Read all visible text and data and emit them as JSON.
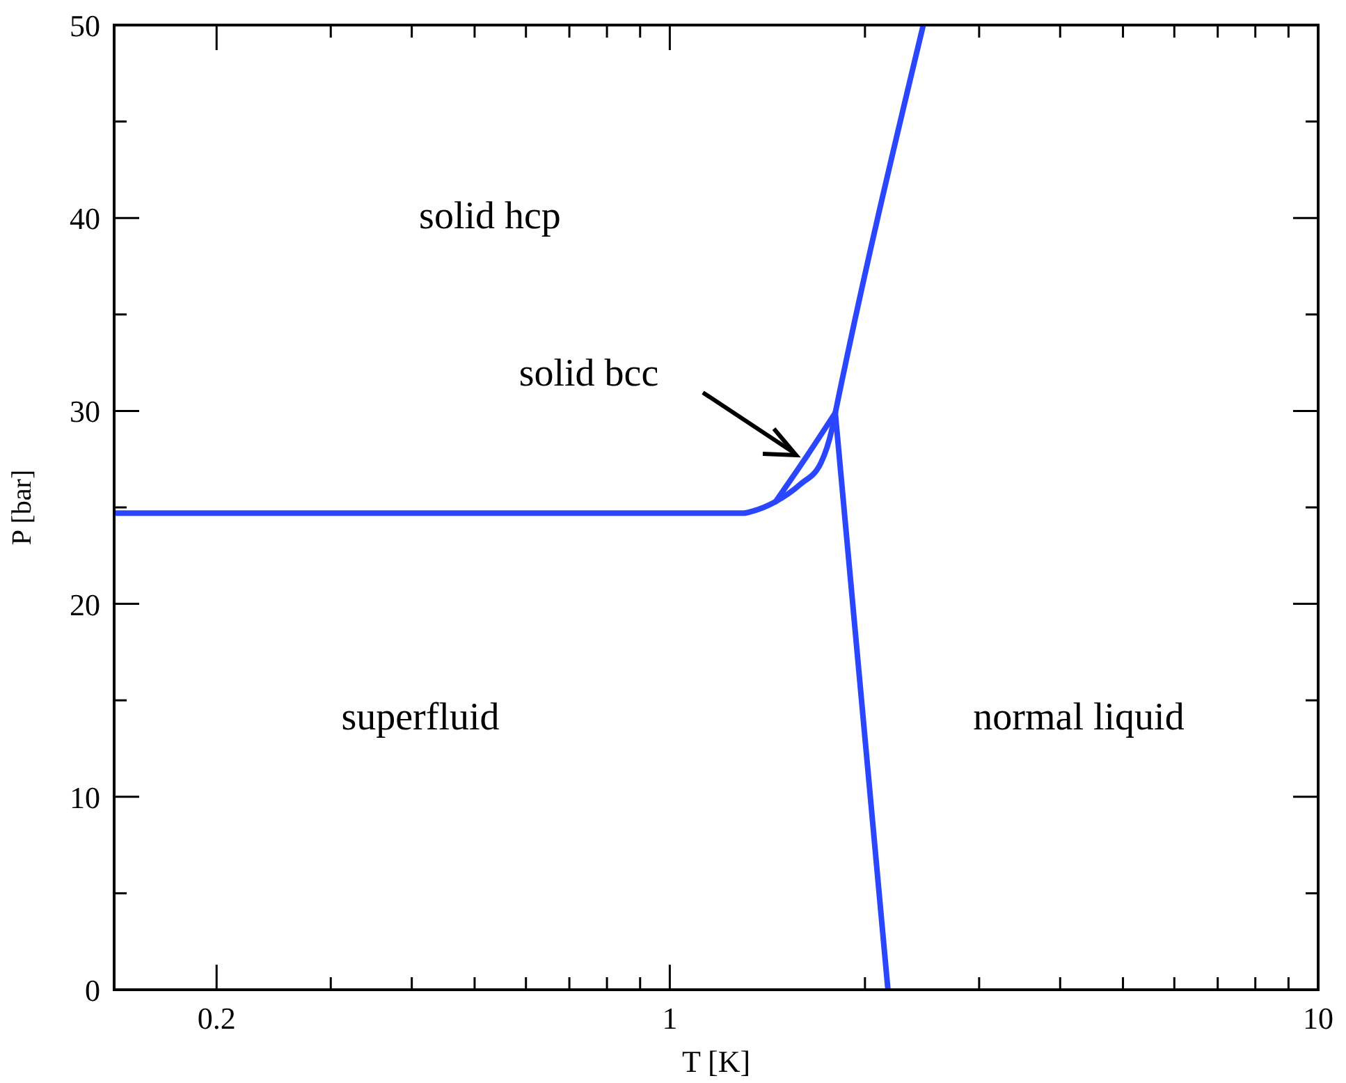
{
  "chart_data": {
    "type": "line",
    "xlabel": "T [K]",
    "ylabel": "P [bar]",
    "log": "x",
    "xlim": [
      0.139,
      10
    ],
    "ylim": [
      0,
      50
    ],
    "xticks": [
      {
        "value": 0.2,
        "label": "0.2"
      },
      {
        "value": 0.3,
        "label": null
      },
      {
        "value": 0.4,
        "label": null
      },
      {
        "value": 0.5,
        "label": null
      },
      {
        "value": 0.6,
        "label": null
      },
      {
        "value": 0.7,
        "label": null
      },
      {
        "value": 0.8,
        "label": null
      },
      {
        "value": 0.9,
        "label": null
      },
      1,
      {
        "value": 2,
        "label": null
      },
      {
        "value": 3,
        "label": null
      },
      {
        "value": 4,
        "label": null
      },
      {
        "value": 5,
        "label": null
      },
      {
        "value": 6,
        "label": null
      },
      {
        "value": 7,
        "label": null
      },
      {
        "value": 8,
        "label": null
      },
      {
        "value": 9,
        "label": null
      },
      10
    ],
    "yticks": [
      0,
      {
        "value": 5,
        "label": null
      },
      10,
      {
        "value": 15,
        "label": null
      },
      20,
      {
        "value": 25,
        "label": null
      },
      30,
      {
        "value": 35,
        "label": null
      },
      40,
      {
        "value": 45,
        "label": null
      },
      50
    ],
    "grid": false,
    "marker": "none",
    "line_style": "solid",
    "series": [
      {
        "color": "#2b46ff",
        "x": [
          0.139,
          1.0,
          1.3,
          1.34,
          1.456,
          1.59,
          1.71,
          1.78,
          1.8,
          2.46
        ],
        "values": [
          24.7,
          24.7,
          24.7,
          24.8,
          25.3,
          26.2,
          27.3,
          29.1,
          29.9,
          50
        ]
      },
      {
        "color": "#2b46ff",
        "x": [
          1.456,
          1.63,
          1.8
        ],
        "values": [
          25.3,
          27.7,
          29.9
        ]
      },
      {
        "color": "#2b46ff",
        "x": [
          1.8,
          2.17
        ],
        "values": [
          29.9,
          0
        ]
      }
    ],
    "annotations": [
      "solid hcp",
      "solid bcc",
      "superfluid",
      "normal liquid"
    ]
  }
}
